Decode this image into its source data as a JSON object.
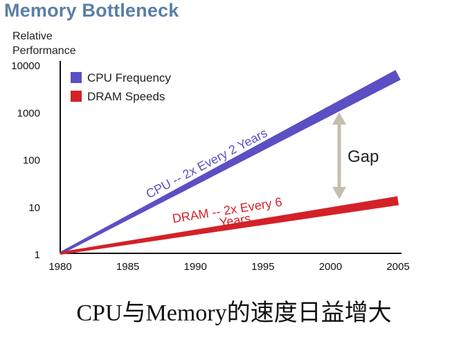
{
  "chart_data": {
    "type": "line",
    "title": "Memory Bottleneck",
    "ylabel": [
      "Relative",
      "Performance"
    ],
    "xlabel": "",
    "yscale": "log",
    "ylim": [
      1,
      10000
    ],
    "xlim": [
      1980,
      2005
    ],
    "x_ticks": [
      "1980",
      "1985",
      "1990",
      "1995",
      "2000",
      "2005"
    ],
    "y_ticks": [
      "10000",
      "1000",
      "100",
      "10",
      "1"
    ],
    "series": [
      {
        "name": "CPU Frequency",
        "color": "#5b4fc4",
        "x": [
          1980,
          2005
        ],
        "y": [
          1,
          6000
        ],
        "label": "CPU -- 2x Every 2 Years"
      },
      {
        "name": "DRAM Speeds",
        "color": "#d42128",
        "x": [
          1980,
          2005
        ],
        "y": [
          1,
          13
        ],
        "label": "DRAM -- 2x Every 6",
        "label_cont": "Years"
      }
    ],
    "annotations": [
      {
        "text": "Gap",
        "x": 2000,
        "y_from": 10,
        "y_to": 1600,
        "color": "#c3bfae"
      }
    ],
    "legend_position": "top-left",
    "grid": false
  },
  "caption": "CPU与Memory的速度日益增大"
}
